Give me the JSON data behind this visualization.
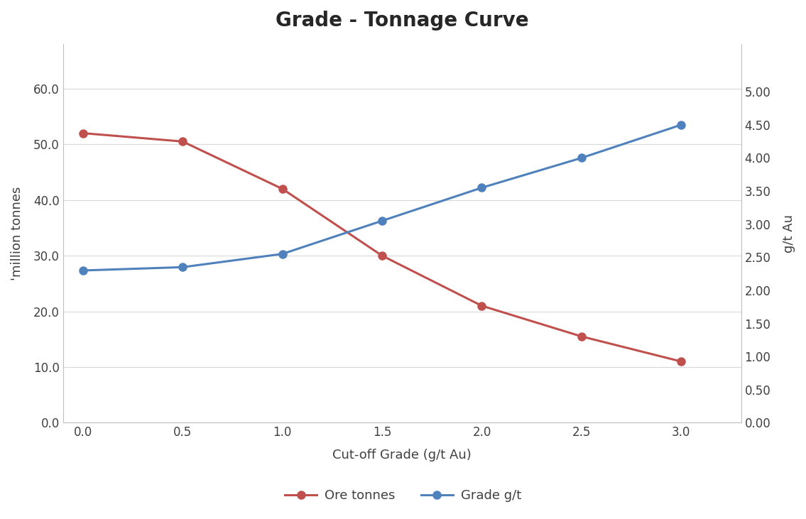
{
  "title": "Grade - Tonnage Curve",
  "x_values": [
    0.0,
    0.5,
    1.0,
    1.5,
    2.0,
    2.5,
    3.0
  ],
  "ore_tonnes": [
    52.0,
    50.5,
    42.0,
    30.0,
    21.0,
    15.5,
    11.0
  ],
  "grade_gt": [
    2.3,
    2.35,
    2.55,
    3.05,
    3.55,
    4.0,
    4.5
  ],
  "ore_color": "#c0504d",
  "grade_color": "#4f81bd",
  "xlabel": "Cut-off Grade (g/t Au)",
  "ylabel_left": "'million tonnes",
  "ylabel_right": "g/t Au",
  "legend_ore": "Ore tonnes",
  "legend_grade": "Grade g/t",
  "xlim": [
    -0.1,
    3.3
  ],
  "ylim_left": [
    0,
    68
  ],
  "ylim_right": [
    0,
    5.72
  ],
  "yticks_left": [
    0.0,
    10.0,
    20.0,
    30.0,
    40.0,
    50.0,
    60.0
  ],
  "yticks_right": [
    0.0,
    0.5,
    1.0,
    1.5,
    2.0,
    2.5,
    3.0,
    3.5,
    4.0,
    4.5,
    5.0
  ],
  "xticks": [
    0.0,
    0.5,
    1.0,
    1.5,
    2.0,
    2.5,
    3.0
  ],
  "background_color": "#ffffff",
  "grid_color": "#d9d9d9",
  "title_fontsize": 20,
  "axis_label_fontsize": 13,
  "tick_fontsize": 12,
  "legend_fontsize": 13,
  "marker_size": 8,
  "line_width": 2.2
}
